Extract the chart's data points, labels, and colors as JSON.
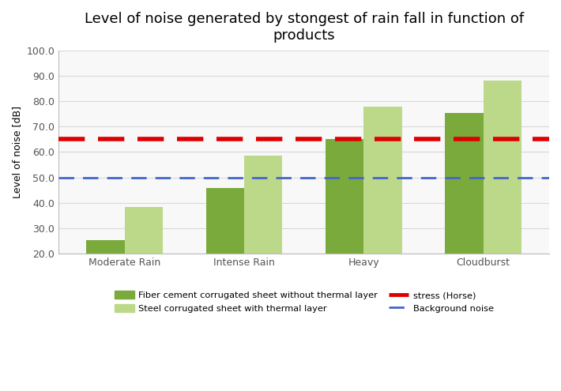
{
  "title": "Level of noise generated by stongest of rain fall in function of\nproducts",
  "ylabel": "Level of noise [dB]",
  "categories": [
    "Moderate Rain",
    "Intense Rain",
    "Heavy",
    "Cloudburst"
  ],
  "fiber_cement_values": [
    25.5,
    46.0,
    65.0,
    75.5
  ],
  "steel_corrugated_values": [
    38.5,
    58.5,
    78.0,
    88.0
  ],
  "stress_line": 65.0,
  "background_noise_line": 50.0,
  "ylim_min": 20.0,
  "ylim_max": 100.0,
  "yticks": [
    20.0,
    30.0,
    40.0,
    50.0,
    60.0,
    70.0,
    80.0,
    90.0,
    100.0
  ],
  "color_fiber": "#7aaa3c",
  "color_steel": "#bcd98a",
  "color_stress": "#dd0000",
  "color_background_noise": "#4466cc",
  "bar_width": 0.32,
  "legend_fiber": "Fiber cement corrugated sheet without thermal layer",
  "legend_steel": "Steel corrugated sheet with thermal layer",
  "legend_stress": "stress (Horse)",
  "legend_bg_noise": "Background noise",
  "title_fontsize": 13,
  "axis_fontsize": 9,
  "tick_fontsize": 9,
  "grid_color": "#d8d8d8",
  "background_color": "#f8f8f8"
}
